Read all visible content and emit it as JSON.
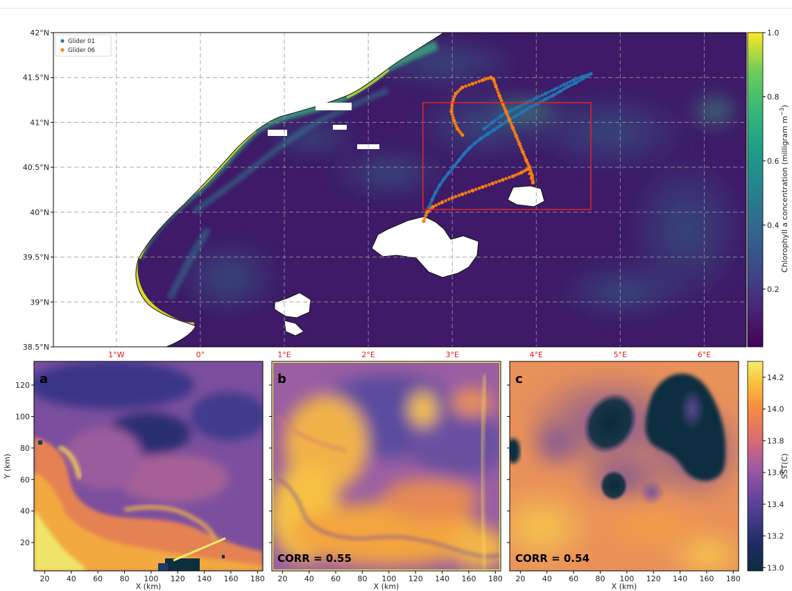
{
  "chart_data": [
    {
      "type": "scatter",
      "panel": "map",
      "legend_position": "upper-left",
      "grid": true,
      "lon_ticks": [
        "1°W",
        "0°",
        "1°E",
        "2°E",
        "3°E",
        "4°E",
        "5°E",
        "6°E"
      ],
      "lat_ticks": [
        "42°N",
        "41.5°N",
        "41°N",
        "40.5°N",
        "40°N",
        "39.5°N",
        "39°N",
        "38.5°N"
      ],
      "xlim": [
        -1.75,
        6.5
      ],
      "ylim": [
        38.5,
        42
      ],
      "colorbar": {
        "label": "Chlorophyll a concentration (milligram m",
        "label_superscript": "−3",
        "label_close": ")",
        "ticks": [
          "1.0",
          "0.8",
          "0.6",
          "0.4",
          "0.2"
        ],
        "tick_values": [
          1.0,
          0.8,
          0.6,
          0.4,
          0.2
        ],
        "range": [
          0.02,
          1.0
        ]
      },
      "box": {
        "lon": [
          2.65,
          4.65
        ],
        "lat": [
          40.03,
          41.22
        ]
      },
      "series": [
        {
          "name": "Glider 01",
          "color": "#1f77b4",
          "points": [
            [
              2.68,
              39.96
            ],
            [
              2.72,
              40.05
            ],
            [
              2.76,
              40.14
            ],
            [
              2.8,
              40.22
            ],
            [
              2.85,
              40.3
            ],
            [
              2.9,
              40.37
            ],
            [
              2.96,
              40.44
            ],
            [
              3.02,
              40.51
            ],
            [
              3.08,
              40.58
            ],
            [
              3.14,
              40.65
            ],
            [
              3.2,
              40.71
            ],
            [
              3.27,
              40.77
            ],
            [
              3.34,
              40.82
            ],
            [
              3.42,
              40.87
            ],
            [
              3.5,
              40.92
            ],
            [
              3.58,
              40.97
            ],
            [
              3.66,
              41.02
            ],
            [
              3.75,
              41.07
            ],
            [
              3.84,
              41.12
            ],
            [
              3.93,
              41.17
            ],
            [
              4.02,
              41.21
            ],
            [
              4.11,
              41.26
            ],
            [
              4.2,
              41.3
            ],
            [
              4.29,
              41.35
            ],
            [
              4.38,
              41.4
            ],
            [
              4.47,
              41.44
            ],
            [
              4.56,
              41.49
            ],
            [
              4.65,
              41.54
            ],
            [
              4.55,
              41.51
            ],
            [
              4.44,
              41.47
            ],
            [
              4.33,
              41.42
            ],
            [
              4.22,
              41.37
            ],
            [
              4.11,
              41.32
            ],
            [
              4.0,
              41.27
            ],
            [
              3.89,
              41.22
            ],
            [
              3.78,
              41.17
            ],
            [
              3.68,
              41.12
            ],
            [
              3.58,
              41.07
            ],
            [
              3.48,
              41.0
            ],
            [
              3.38,
              40.93
            ]
          ]
        },
        {
          "name": "Glider 06",
          "color": "#ff7f0e",
          "points": [
            [
              2.66,
              39.9
            ],
            [
              2.7,
              40.0
            ],
            [
              2.77,
              40.06
            ],
            [
              2.88,
              40.11
            ],
            [
              3.0,
              40.16
            ],
            [
              3.12,
              40.2
            ],
            [
              3.24,
              40.24
            ],
            [
              3.36,
              40.28
            ],
            [
              3.48,
              40.32
            ],
            [
              3.6,
              40.36
            ],
            [
              3.72,
              40.4
            ],
            [
              3.82,
              40.44
            ],
            [
              3.9,
              40.48
            ],
            [
              3.96,
              40.33
            ],
            [
              3.95,
              40.41
            ],
            [
              3.92,
              40.5
            ],
            [
              3.88,
              40.58
            ],
            [
              3.84,
              40.67
            ],
            [
              3.8,
              40.76
            ],
            [
              3.76,
              40.85
            ],
            [
              3.72,
              40.94
            ],
            [
              3.68,
              41.03
            ],
            [
              3.64,
              41.12
            ],
            [
              3.6,
              41.21
            ],
            [
              3.56,
              41.3
            ],
            [
              3.52,
              41.4
            ],
            [
              3.49,
              41.48
            ],
            [
              3.46,
              41.5
            ],
            [
              3.36,
              41.47
            ],
            [
              3.24,
              41.43
            ],
            [
              3.12,
              41.39
            ],
            [
              3.04,
              41.32
            ],
            [
              3.0,
              41.22
            ],
            [
              2.99,
              41.12
            ],
            [
              3.02,
              41.02
            ],
            [
              3.06,
              40.93
            ],
            [
              3.12,
              40.86
            ]
          ]
        }
      ]
    },
    {
      "type": "heatmap",
      "panel": "a",
      "panel_label": "a",
      "xlabel": "X (km)",
      "ylabel": "Y (km)",
      "xticks": [
        "20",
        "40",
        "60",
        "80",
        "100",
        "120",
        "140",
        "160",
        "180"
      ],
      "yticks": [
        "120",
        "100",
        "80",
        "60",
        "40",
        "20"
      ],
      "xlim": [
        12,
        184
      ],
      "ylim": [
        2,
        135
      ]
    },
    {
      "type": "heatmap",
      "panel": "b",
      "panel_label": "b",
      "xlabel": "X (km)",
      "xticks": [
        "20",
        "40",
        "60",
        "80",
        "100",
        "120",
        "140",
        "160",
        "180"
      ],
      "annotation": "CORR = 0.55",
      "xlim": [
        12,
        184
      ],
      "ylim": [
        2,
        135
      ]
    },
    {
      "type": "heatmap",
      "panel": "c",
      "panel_label": "c",
      "xlabel": "X (km)",
      "xticks": [
        "20",
        "40",
        "60",
        "80",
        "100",
        "120",
        "140",
        "160",
        "180"
      ],
      "annotation": "CORR = 0.54",
      "xlim": [
        12,
        184
      ],
      "ylim": [
        2,
        135
      ],
      "colorbar": {
        "label": "SST(C)",
        "ticks": [
          "14.2",
          "14.0",
          "13.8",
          "13.6",
          "13.4",
          "13.2",
          "13.0"
        ],
        "tick_values": [
          14.2,
          14.0,
          13.8,
          13.6,
          13.4,
          13.2,
          13.0
        ],
        "range": [
          12.98,
          14.3
        ]
      }
    }
  ]
}
